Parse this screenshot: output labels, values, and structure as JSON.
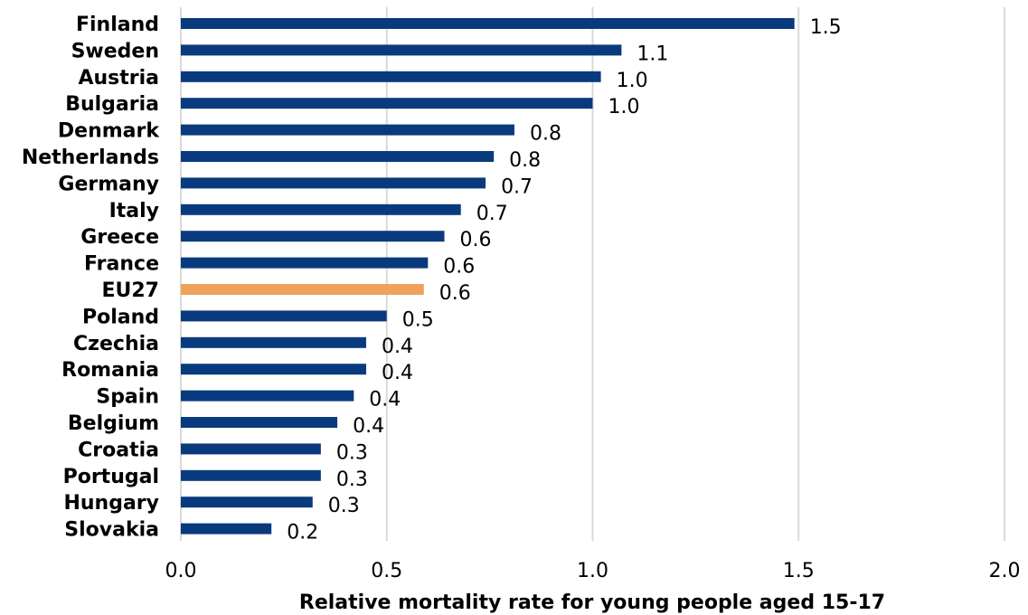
{
  "chart_data": {
    "type": "bar",
    "orientation": "horizontal",
    "categories": [
      "Finland",
      "Sweden",
      "Austria",
      "Bulgaria",
      "Denmark",
      "Netherlands",
      "Germany",
      "Italy",
      "Greece",
      "France",
      "EU27",
      "Poland",
      "Czechia",
      "Romania",
      "Spain",
      "Belgium",
      "Croatia",
      "Portugal",
      "Hungary",
      "Slovakia"
    ],
    "values": [
      1.49,
      1.07,
      1.02,
      1.0,
      0.81,
      0.76,
      0.74,
      0.68,
      0.64,
      0.6,
      0.59,
      0.5,
      0.45,
      0.45,
      0.42,
      0.38,
      0.34,
      0.34,
      0.32,
      0.22
    ],
    "value_labels": [
      "1.5",
      "1.1",
      "1.0",
      "1.0",
      "0.8",
      "0.8",
      "0.7",
      "0.7",
      "0.6",
      "0.6",
      "0.6",
      "0.5",
      "0.4",
      "0.4",
      "0.4",
      "0.4",
      "0.3",
      "0.3",
      "0.3",
      "0.2"
    ],
    "highlight_category": "EU27",
    "xlabel": "Relative mortality rate for young people aged 15-17",
    "ylabel": "",
    "title": "",
    "xlim": [
      0,
      2.0
    ],
    "xticks": [
      "0.0",
      "0.5",
      "1.0",
      "1.5",
      "2.0"
    ],
    "grid": "vertical",
    "legend": "none",
    "colors": {
      "bar": "#0a3a7e",
      "highlight": "#f0a15a",
      "grid": "#d9d9d9"
    }
  }
}
